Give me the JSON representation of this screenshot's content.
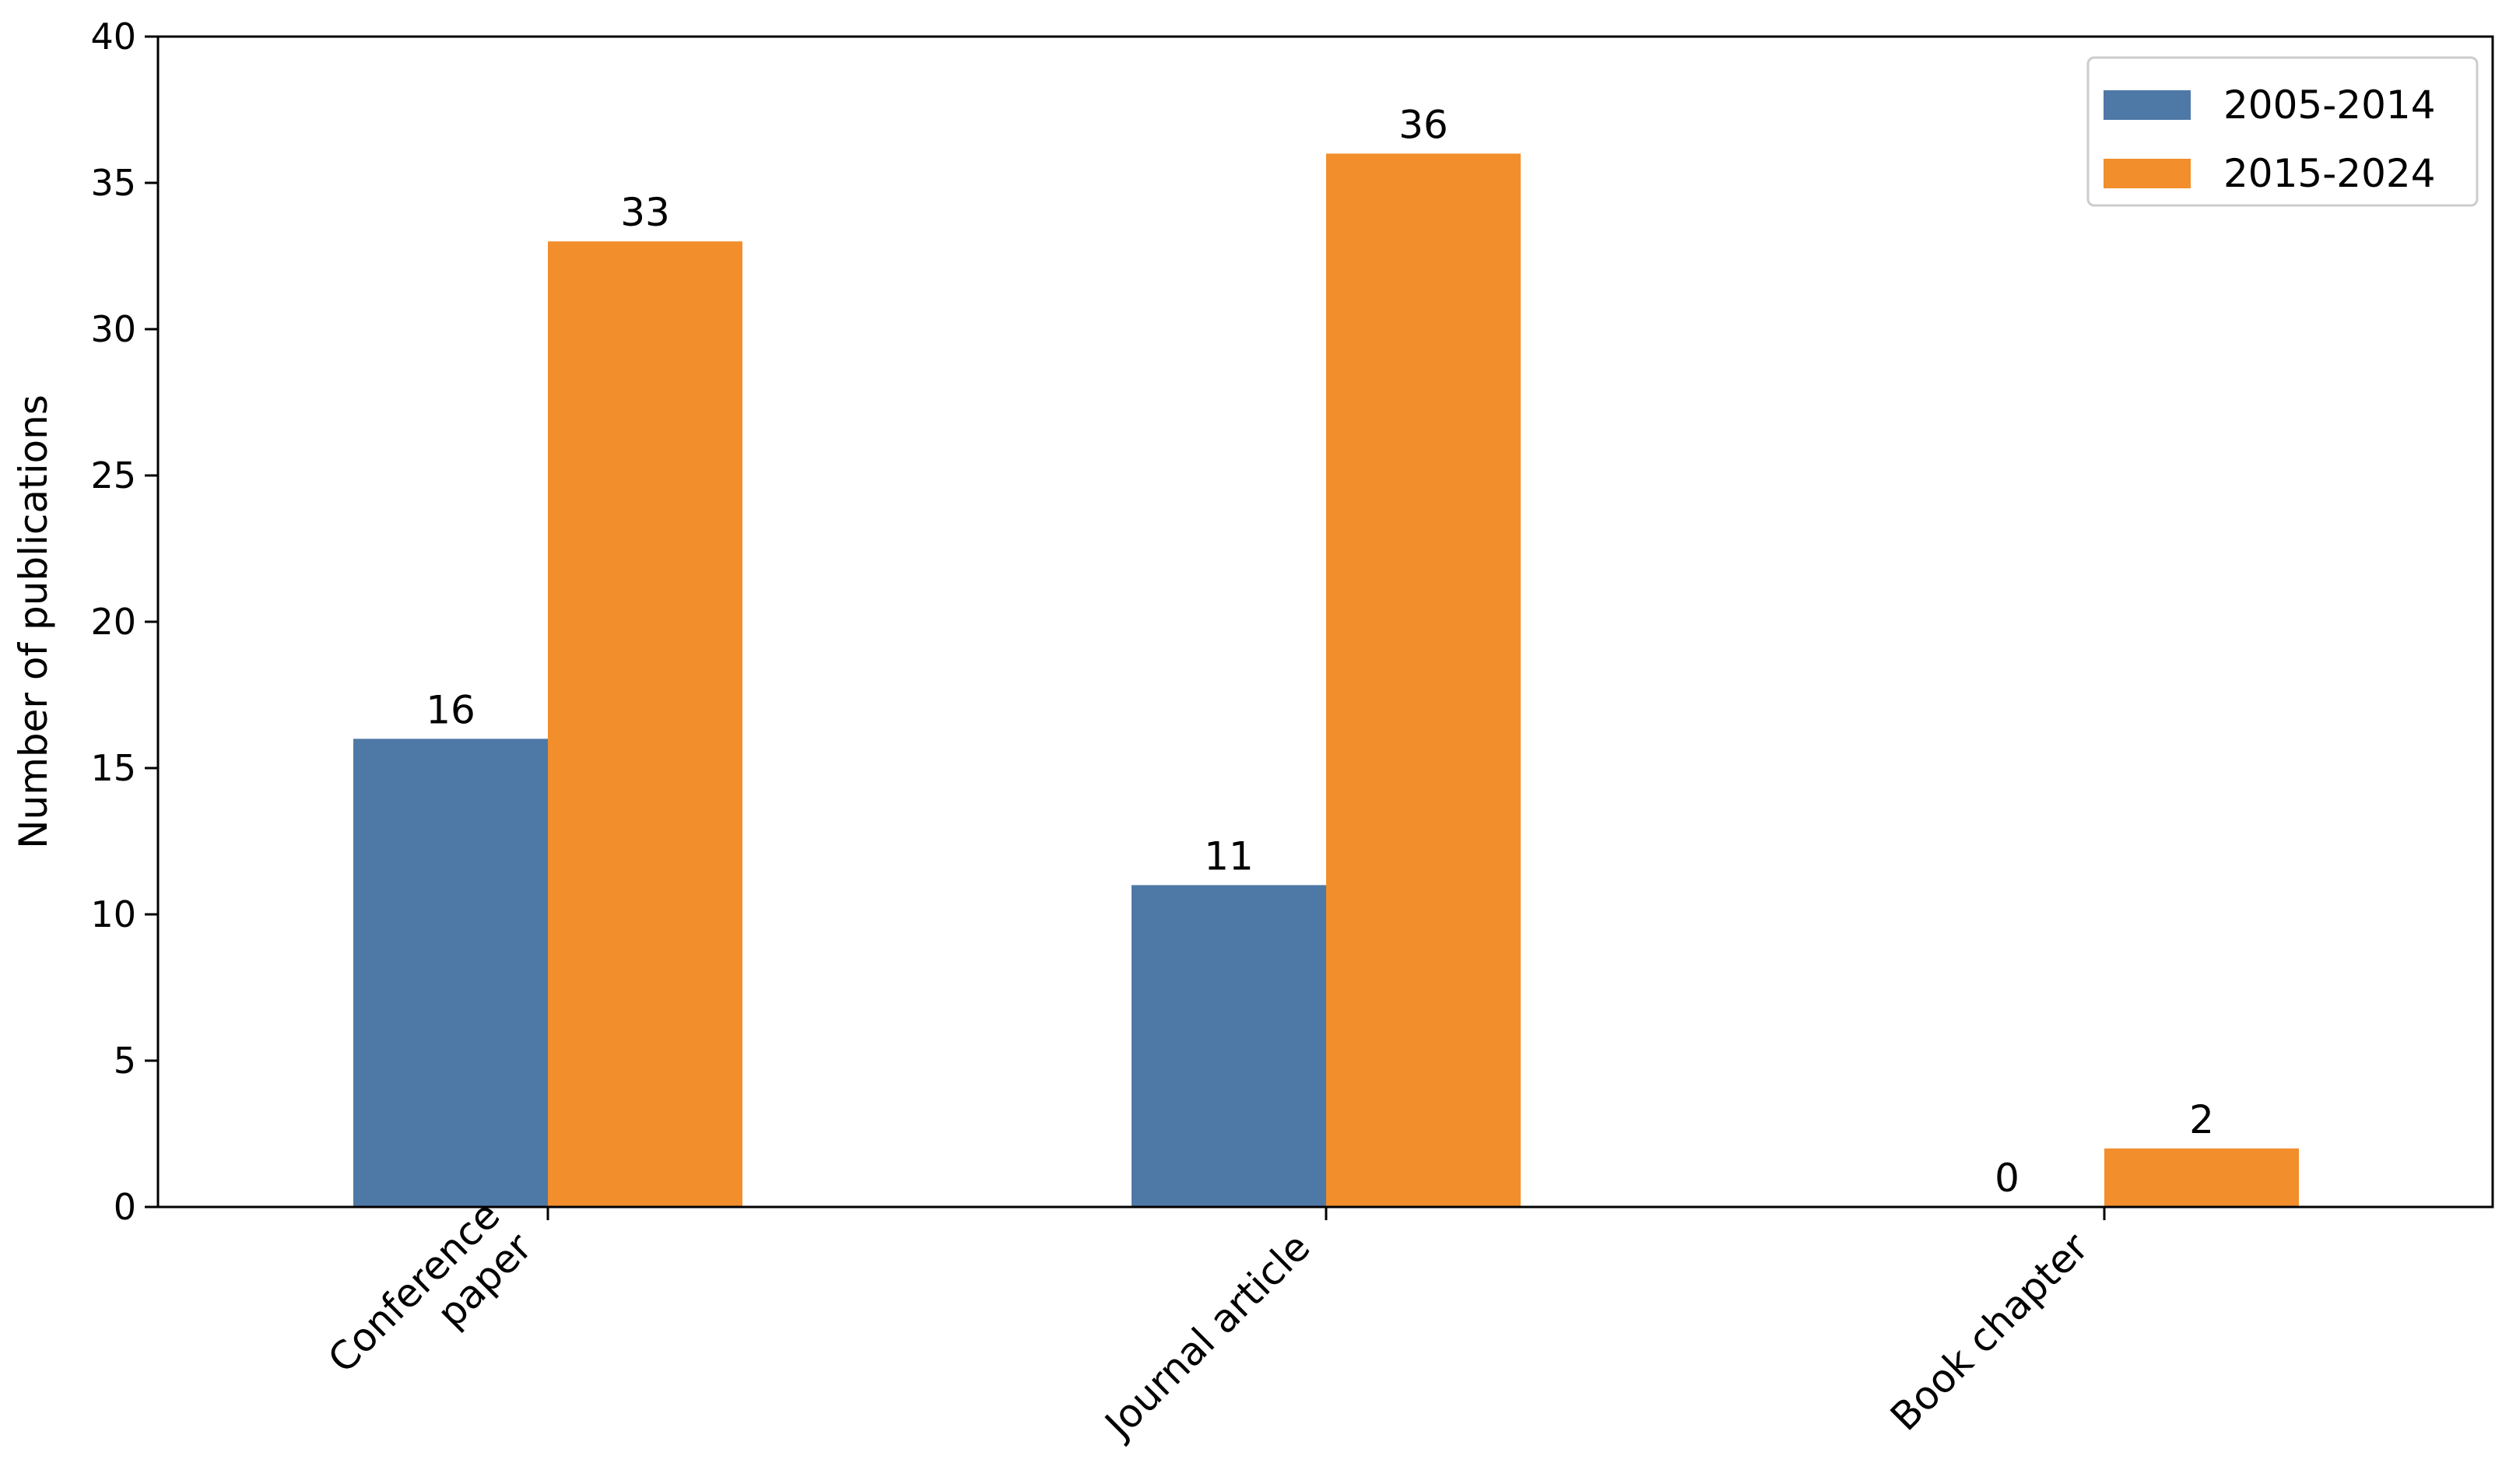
{
  "chart_data": {
    "type": "bar",
    "title": "",
    "xlabel": "",
    "ylabel": "Number of publications",
    "categories": [
      [
        "Conference",
        "paper"
      ],
      [
        "Journal article"
      ],
      [
        "Book chapter"
      ]
    ],
    "series": [
      {
        "name": "2005-2014",
        "color": "#4e78a6",
        "values": [
          16,
          11,
          0
        ]
      },
      {
        "name": "2015-2024",
        "color": "#f28e2c",
        "values": [
          33,
          36,
          2
        ]
      }
    ],
    "ylim": [
      0,
      40
    ],
    "yticks": [
      0,
      5,
      10,
      15,
      20,
      25,
      30,
      35,
      40
    ],
    "grid": false,
    "legend": "top-right",
    "data_labels": true
  }
}
